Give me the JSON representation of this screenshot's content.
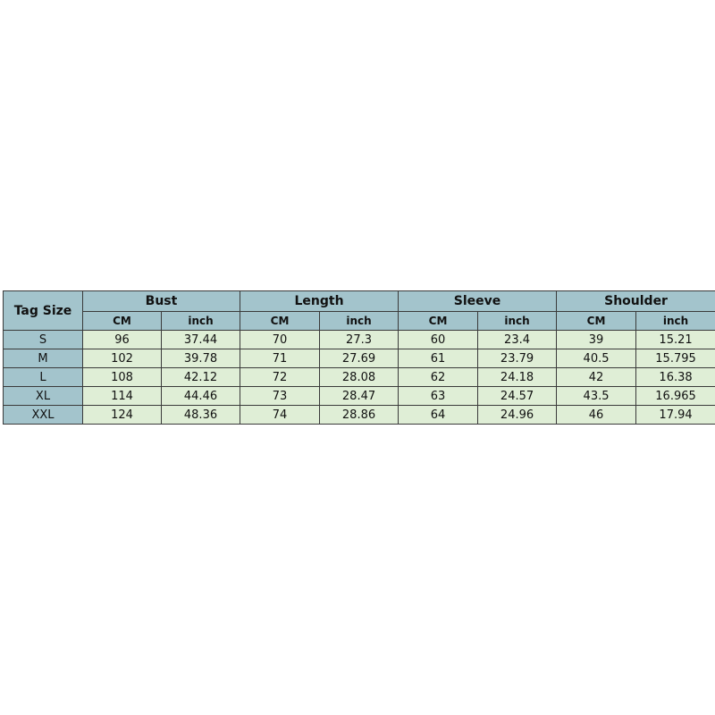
{
  "table": {
    "tag_header": "Tag Size",
    "groups": [
      "Bust",
      "Length",
      "Sleeve",
      "Shoulder"
    ],
    "units": [
      "CM",
      "inch"
    ],
    "rows": [
      {
        "size": "S",
        "values": [
          "96",
          "37.44",
          "70",
          "27.3",
          "60",
          "23.4",
          "39",
          "15.21"
        ]
      },
      {
        "size": "M",
        "values": [
          "102",
          "39.78",
          "71",
          "27.69",
          "61",
          "23.79",
          "40.5",
          "15.795"
        ]
      },
      {
        "size": "L",
        "values": [
          "108",
          "42.12",
          "72",
          "28.08",
          "62",
          "24.18",
          "42",
          "16.38"
        ]
      },
      {
        "size": "XL",
        "values": [
          "114",
          "44.46",
          "73",
          "28.47",
          "63",
          "24.57",
          "43.5",
          "16.965"
        ]
      },
      {
        "size": "XXL",
        "values": [
          "124",
          "48.36",
          "74",
          "28.86",
          "64",
          "24.96",
          "46",
          "17.94"
        ]
      }
    ]
  },
  "colors": {
    "header_bg": "#a3c4cc",
    "cell_bg": "#dfeed6"
  }
}
